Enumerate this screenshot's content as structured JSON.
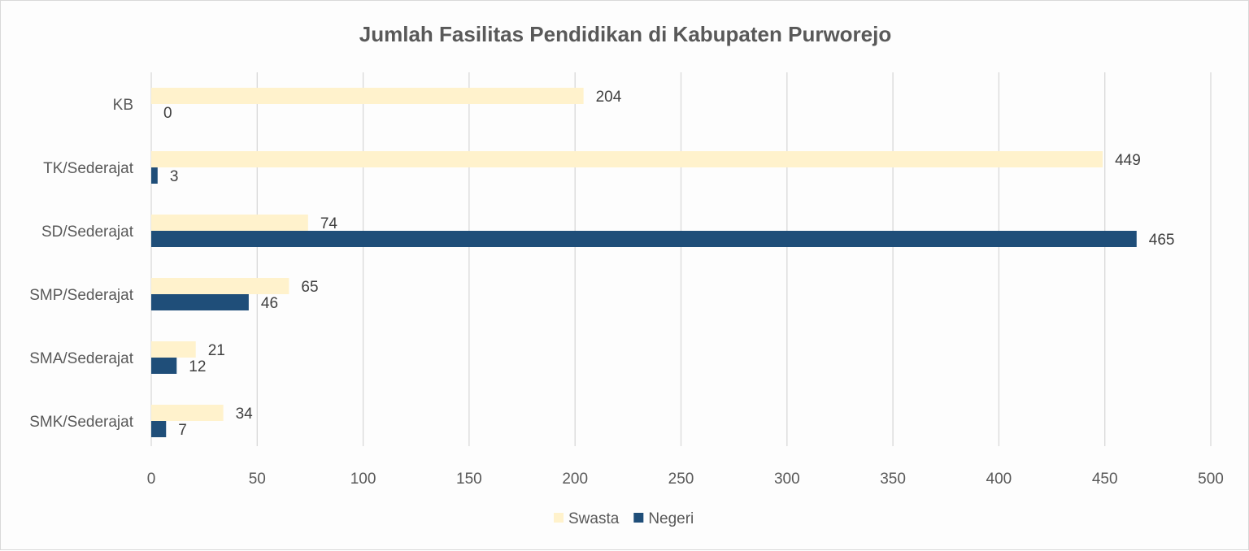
{
  "chart_data": {
    "type": "bar",
    "orientation": "horizontal",
    "title": "Jumlah Fasilitas Pendidikan di Kabupaten Purworejo",
    "categories": [
      "KB",
      "TK/Sederajat",
      "SD/Sederajat",
      "SMP/Sederajat",
      "SMA/Sederajat",
      "SMK/Sederajat"
    ],
    "series": [
      {
        "name": "Swasta",
        "color": "#fff2cc",
        "values": [
          204,
          449,
          74,
          65,
          21,
          34
        ]
      },
      {
        "name": "Negeri",
        "color": "#1f4e79",
        "values": [
          0,
          3,
          465,
          46,
          12,
          7
        ]
      }
    ],
    "xlim": [
      0,
      500
    ],
    "xticks": [
      0,
      50,
      100,
      150,
      200,
      250,
      300,
      350,
      400,
      450,
      500
    ],
    "xlabel": "",
    "ylabel": "",
    "grid": "vertical",
    "legend": "bottom",
    "data_labels": true
  }
}
